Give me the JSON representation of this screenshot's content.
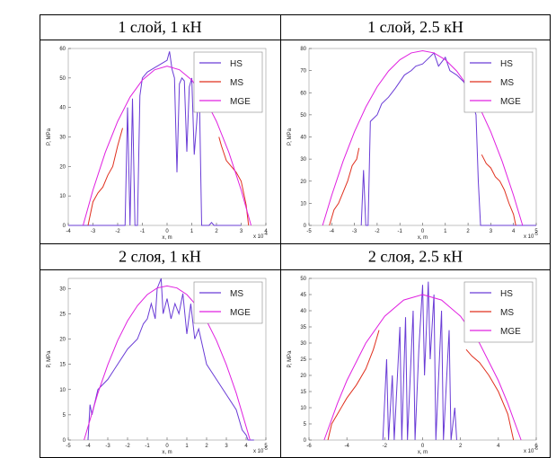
{
  "chart_data": [
    {
      "type": "line",
      "title": "1 слой, 1 кН",
      "xlabel": "x, m",
      "ylabel": "P, MPa",
      "x_exponent": {
        "base": "x 10",
        "exp": "-4"
      },
      "xlim": [
        -4,
        4
      ],
      "xticks": [
        -4,
        -3,
        -2,
        -1,
        0,
        1,
        2,
        3,
        4
      ],
      "ylim": [
        0,
        60
      ],
      "yticks": [
        0,
        10,
        20,
        30,
        40,
        50,
        60
      ],
      "legend": "upper right",
      "series": [
        {
          "name": "HS",
          "color": "#6a3cd6",
          "x": [
            -4,
            -1.7,
            -1.6,
            -1.5,
            -1.4,
            -1.3,
            -1.2,
            -1.1,
            -1,
            -0.8,
            -0.6,
            -0.4,
            -0.2,
            0,
            0.1,
            0.2,
            0.3,
            0.4,
            0.5,
            0.6,
            0.7,
            0.8,
            0.9,
            1,
            1.1,
            1.2,
            1.3,
            1.4,
            1.7,
            1.8,
            1.9,
            3
          ],
          "values": [
            0,
            0,
            40,
            0,
            43,
            0,
            0,
            44,
            50,
            52,
            53,
            54,
            55,
            56,
            59,
            53,
            50,
            18,
            48,
            50,
            49,
            25,
            47,
            50,
            24,
            35,
            48,
            0,
            0,
            1,
            0,
            0
          ]
        },
        {
          "name": "MS",
          "color": "#e0301e",
          "x": [
            -3.2,
            -3,
            -2.8,
            -2.6,
            -2.4,
            -2.2,
            -2,
            -1.8,
            0,
            2.1,
            2.2,
            2.4,
            2.6,
            2.8,
            3,
            3.2,
            3.3
          ],
          "values": [
            0,
            8,
            11,
            13,
            17,
            20,
            27,
            33,
            null,
            30,
            27,
            22,
            20,
            18,
            15,
            7,
            0
          ]
        },
        {
          "name": "MGE",
          "color": "#e020e0",
          "x": [
            -3.4,
            -3,
            -2.5,
            -2,
            -1.5,
            -1,
            -0.5,
            0,
            0.5,
            1,
            1.5,
            2,
            2.5,
            3,
            3.4
          ],
          "values": [
            0,
            12,
            24.8,
            35.3,
            43.5,
            49.3,
            52.8,
            54,
            52.8,
            49.3,
            43.5,
            35.3,
            24.8,
            12,
            0
          ]
        }
      ]
    },
    {
      "type": "line",
      "title": "1 слой, 2.5 кН",
      "xlabel": "x, m",
      "ylabel": "P, MPa",
      "x_exponent": {
        "base": "x 10",
        "exp": "-5"
      },
      "xlim": [
        -5,
        5
      ],
      "xticks": [
        -5,
        -4,
        -3,
        -2,
        -1,
        0,
        1,
        2,
        3,
        4,
        5
      ],
      "ylim": [
        0,
        80
      ],
      "yticks": [
        0,
        10,
        20,
        30,
        40,
        50,
        60,
        70,
        80
      ],
      "legend": "upper right",
      "series": [
        {
          "name": "HS",
          "color": "#6a3cd6",
          "x": [
            -2.7,
            -2.6,
            -2.5,
            -2.4,
            -2.3,
            -2,
            -1.8,
            -1.5,
            -1.2,
            -1,
            -0.8,
            -0.5,
            -0.3,
            0,
            0.2,
            0.5,
            0.7,
            1,
            1.2,
            1.5,
            1.8,
            2,
            2.2,
            2.35,
            2.45,
            2.55,
            5
          ],
          "values": [
            0,
            25,
            0,
            0,
            47,
            50,
            55,
            58,
            62,
            65,
            68,
            70,
            72,
            73,
            75,
            78,
            72,
            76,
            70,
            68,
            65,
            62,
            55,
            50,
            20,
            0,
            0
          ]
        },
        {
          "name": "MS",
          "color": "#e0301e",
          "x": [
            -4.1,
            -3.9,
            -3.7,
            -3.5,
            -3.3,
            -3.1,
            -2.9,
            -2.8,
            0,
            2.6,
            2.8,
            3,
            3.2,
            3.4,
            3.6,
            3.8,
            4,
            4.1
          ],
          "values": [
            0,
            7,
            10,
            15,
            20,
            27,
            30,
            35,
            null,
            32,
            28,
            26,
            22,
            20,
            16,
            10,
            5,
            0
          ]
        },
        {
          "name": "MGE",
          "color": "#e020e0",
          "x": [
            -4.4,
            -4,
            -3.5,
            -3,
            -2.5,
            -2,
            -1.5,
            -1,
            -0.5,
            0,
            0.5,
            1,
            1.5,
            2,
            2.5,
            3,
            3.5,
            4,
            4.4
          ],
          "values": [
            0,
            13.6,
            29,
            42.3,
            53.5,
            62.7,
            69.8,
            74.9,
            78,
            79,
            78,
            74.9,
            69.8,
            62.7,
            53.5,
            42.3,
            29,
            13.6,
            0
          ]
        }
      ]
    },
    {
      "type": "line",
      "title": "2 слоя, 1 кН",
      "xlabel": "x, m",
      "ylabel": "P, MPa",
      "x_exponent": {
        "base": "x 10",
        "exp": "-5"
      },
      "xlim": [
        -5,
        5
      ],
      "xticks": [
        -5,
        -4,
        -3,
        -2,
        -1,
        0,
        1,
        2,
        3,
        4,
        5
      ],
      "ylim": [
        0,
        32
      ],
      "yticks": [
        0,
        5,
        10,
        15,
        20,
        25,
        30
      ],
      "legend": "upper right",
      "series": [
        {
          "name": "MS",
          "color": "#6a3cd6",
          "x": [
            -4,
            -3.9,
            -3.8,
            -3.5,
            -3,
            -2.5,
            -2,
            -1.5,
            -1.2,
            -1,
            -0.8,
            -0.6,
            -0.5,
            -0.3,
            -0.2,
            0,
            0.2,
            0.4,
            0.6,
            0.8,
            1,
            1.2,
            1.4,
            1.6,
            2,
            2.5,
            3,
            3.5,
            3.8,
            4,
            4.1,
            4.4
          ],
          "values": [
            0,
            7,
            5,
            10,
            12,
            15,
            18,
            20,
            23,
            24,
            27,
            24,
            30,
            32,
            25,
            28,
            24,
            27,
            25,
            29,
            21,
            27,
            20,
            22,
            15,
            12,
            9,
            6,
            2,
            1,
            0,
            0
          ]
        },
        {
          "name": "MGE",
          "color": "#e020e0",
          "x": [
            -4.2,
            -3.5,
            -3,
            -2.5,
            -2,
            -1.5,
            -1,
            -0.5,
            0,
            0.5,
            1,
            1.5,
            2,
            2.5,
            3,
            3.5,
            4.2
          ],
          "values": [
            0,
            9.3,
            14.9,
            19.7,
            23.6,
            26.6,
            28.8,
            30.1,
            30.5,
            30.1,
            28.8,
            26.6,
            23.6,
            19.7,
            14.9,
            9.3,
            0
          ]
        }
      ]
    },
    {
      "type": "line",
      "title": "2 слоя, 2.5 кН",
      "xlabel": "x, m",
      "ylabel": "P, MPa",
      "x_exponent": {
        "base": "x 10",
        "exp": "-6"
      },
      "xlim": [
        -6,
        6
      ],
      "xticks": [
        -6,
        -4,
        -2,
        0,
        2,
        4,
        6
      ],
      "ylim": [
        0,
        50
      ],
      "yticks": [
        0,
        5,
        10,
        15,
        20,
        25,
        30,
        35,
        40,
        45,
        50
      ],
      "legend": "upper right",
      "series": [
        {
          "name": "HS",
          "color": "#6a3cd6",
          "x": [
            -2.1,
            -1.9,
            -1.8,
            -1.6,
            -1.5,
            -1.2,
            -1.1,
            -0.9,
            -0.8,
            -0.5,
            -0.4,
            -0.2,
            0,
            0.1,
            0.3,
            0.4,
            0.6,
            0.7,
            1,
            1.1,
            1.4,
            1.5,
            1.7,
            1.8
          ],
          "values": [
            0,
            25,
            0,
            20,
            0,
            35,
            0,
            38,
            0,
            40,
            0,
            28,
            48,
            20,
            49,
            25,
            45,
            0,
            40,
            0,
            34,
            0,
            10,
            0
          ]
        },
        {
          "name": "MS",
          "color": "#e0301e",
          "x": [
            -5,
            -4.8,
            -4.5,
            -4,
            -3.5,
            -3,
            -2.6,
            -2.3,
            0,
            2.3,
            2.6,
            3,
            3.5,
            4,
            4.5,
            4.8
          ],
          "values": [
            0,
            5,
            8,
            13,
            17,
            22,
            28,
            34,
            null,
            28,
            26,
            24,
            20,
            15,
            8,
            0
          ]
        },
        {
          "name": "MGE",
          "color": "#e020e0",
          "x": [
            -5.2,
            -4.5,
            -4,
            -3,
            -2,
            -1,
            0,
            1,
            2,
            3,
            4,
            4.5,
            5.2
          ],
          "values": [
            0,
            11.3,
            18.4,
            30,
            38.3,
            43.3,
            45,
            43.3,
            38.3,
            30,
            18.4,
            11.3,
            0
          ]
        }
      ]
    }
  ]
}
